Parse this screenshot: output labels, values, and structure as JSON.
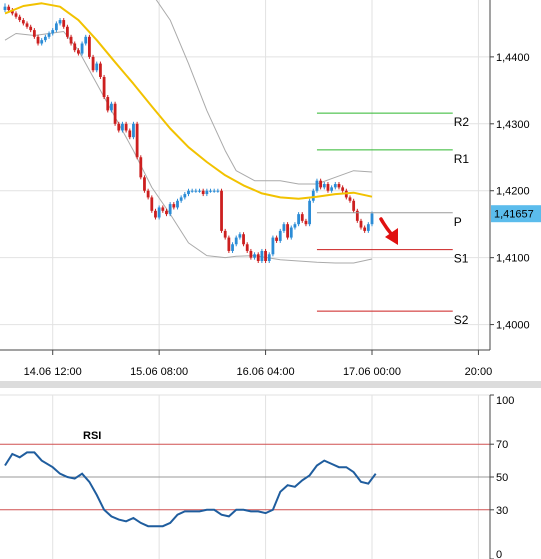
{
  "chart_data": [
    {
      "type": "candlestick",
      "ylim": [
        1.3962,
        1.4485
      ],
      "y_ticks": [
        "1,4000",
        "1,4100",
        "1,4200",
        "1,4300",
        "1,4400"
      ],
      "y_tick_values": [
        1.4,
        1.41,
        1.42,
        1.43,
        1.44
      ],
      "x_ticks": [
        "14.06 12:00",
        "15.06 08:00",
        "16.06 04:00",
        "17.06 00:00",
        "20:00"
      ],
      "x_tick_index": [
        13,
        42,
        71,
        100,
        129
      ],
      "x_range": [
        0,
        135
      ],
      "grid": true,
      "current_price": "1,41657",
      "current_price_value": 1.41657,
      "colors": {
        "up": "#2b8cd6",
        "down": "#cc1f1f",
        "ma": "#f2c200",
        "bands": "#aaaaaa",
        "resistance": "#2db62d",
        "support": "#cc1f1f",
        "pivot": "#9a9a9a",
        "current": "#5bbcec"
      },
      "pivot_levels": [
        {
          "label": "R2",
          "value": 1.4316
        },
        {
          "label": "R1",
          "value": 1.4261
        },
        {
          "label": "P",
          "value": 1.4167
        },
        {
          "label": "S1",
          "value": 1.4112
        },
        {
          "label": "S2",
          "value": 1.402
        }
      ],
      "pivot_x_range": [
        85,
        122
      ],
      "candles": {
        "x": [
          0,
          1,
          2,
          3,
          4,
          5,
          6,
          7,
          8,
          9,
          10,
          11,
          12,
          13,
          14,
          15,
          16,
          17,
          18,
          19,
          20,
          21,
          22,
          23,
          24,
          25,
          26,
          27,
          28,
          29,
          30,
          31,
          32,
          33,
          34,
          35,
          36,
          37,
          38,
          39,
          40,
          41,
          42,
          43,
          44,
          45,
          46,
          47,
          48,
          49,
          50,
          51,
          52,
          53,
          54,
          55,
          56,
          57,
          58,
          59,
          60,
          61,
          62,
          63,
          64,
          65,
          66,
          67,
          68,
          69,
          70,
          71,
          72,
          73,
          74,
          75,
          76,
          77,
          78,
          79,
          80,
          81,
          82,
          83,
          84,
          85,
          86,
          87,
          88,
          89,
          90,
          91,
          92,
          93,
          94,
          95,
          96,
          97,
          98,
          99,
          100
        ],
        "open": [
          1.447,
          1.4475,
          1.447,
          1.4465,
          1.446,
          1.4455,
          1.445,
          1.4445,
          1.444,
          1.443,
          1.442,
          1.4425,
          1.443,
          1.4435,
          1.444,
          1.445,
          1.4455,
          1.4445,
          1.443,
          1.442,
          1.441,
          1.4405,
          1.442,
          1.443,
          1.44,
          1.438,
          1.439,
          1.437,
          1.434,
          1.432,
          1.433,
          1.43,
          1.429,
          1.43,
          1.429,
          1.428,
          1.43,
          1.425,
          1.422,
          1.42,
          1.419,
          1.417,
          1.416,
          1.4175,
          1.417,
          1.4165,
          1.418,
          1.4175,
          1.4185,
          1.419,
          1.4195,
          1.42,
          1.42,
          1.42,
          1.42,
          1.4195,
          1.42,
          1.42,
          1.42,
          1.42,
          1.414,
          1.413,
          1.411,
          1.412,
          1.413,
          1.4135,
          1.412,
          1.411,
          1.41,
          1.4105,
          1.4095,
          1.411,
          1.4095,
          1.4105,
          1.413,
          1.4125,
          1.414,
          1.415,
          1.413,
          1.4145,
          1.415,
          1.4165,
          1.4155,
          1.415,
          1.4185,
          1.42,
          1.4215,
          1.4205,
          1.421,
          1.42,
          1.4205,
          1.421,
          1.4205,
          1.42,
          1.419,
          1.4185,
          1.417,
          1.4155,
          1.4145,
          1.414,
          1.415
        ],
        "close": [
          1.4475,
          1.447,
          1.4465,
          1.446,
          1.4455,
          1.445,
          1.4445,
          1.444,
          1.443,
          1.442,
          1.4425,
          1.443,
          1.4435,
          1.444,
          1.445,
          1.4455,
          1.4445,
          1.443,
          1.442,
          1.441,
          1.4405,
          1.442,
          1.443,
          1.44,
          1.438,
          1.439,
          1.437,
          1.434,
          1.432,
          1.433,
          1.43,
          1.429,
          1.43,
          1.429,
          1.428,
          1.43,
          1.425,
          1.422,
          1.42,
          1.419,
          1.417,
          1.416,
          1.4175,
          1.417,
          1.4165,
          1.418,
          1.4175,
          1.4185,
          1.419,
          1.4195,
          1.42,
          1.42,
          1.42,
          1.42,
          1.4195,
          1.42,
          1.42,
          1.42,
          1.42,
          1.414,
          1.413,
          1.411,
          1.412,
          1.413,
          1.4135,
          1.412,
          1.411,
          1.41,
          1.4105,
          1.4095,
          1.411,
          1.4095,
          1.4105,
          1.413,
          1.4125,
          1.414,
          1.415,
          1.413,
          1.4145,
          1.415,
          1.4165,
          1.4155,
          1.415,
          1.4185,
          1.42,
          1.4215,
          1.4205,
          1.421,
          1.42,
          1.4205,
          1.421,
          1.4205,
          1.42,
          1.419,
          1.4185,
          1.417,
          1.4155,
          1.4145,
          1.414,
          1.415,
          1.4166
        ],
        "high": [
          1.448,
          1.4478,
          1.4473,
          1.4468,
          1.4463,
          1.4458,
          1.4453,
          1.4448,
          1.4443,
          1.4433,
          1.4428,
          1.4433,
          1.4438,
          1.4443,
          1.4453,
          1.4458,
          1.4458,
          1.4448,
          1.4433,
          1.4423,
          1.4413,
          1.4423,
          1.4433,
          1.4433,
          1.4403,
          1.4393,
          1.4393,
          1.4373,
          1.4343,
          1.4333,
          1.4333,
          1.4303,
          1.4303,
          1.4303,
          1.4293,
          1.4303,
          1.4303,
          1.4253,
          1.4223,
          1.4203,
          1.4193,
          1.4173,
          1.4178,
          1.4178,
          1.4173,
          1.4183,
          1.4183,
          1.4188,
          1.4193,
          1.4198,
          1.4203,
          1.4203,
          1.4203,
          1.4203,
          1.4203,
          1.4203,
          1.4203,
          1.4203,
          1.4203,
          1.4203,
          1.4143,
          1.4133,
          1.4123,
          1.4133,
          1.4138,
          1.4138,
          1.4123,
          1.4113,
          1.4108,
          1.4108,
          1.4113,
          1.4113,
          1.4108,
          1.4133,
          1.4133,
          1.4143,
          1.4153,
          1.4153,
          1.4148,
          1.4153,
          1.4168,
          1.4168,
          1.4158,
          1.4188,
          1.4203,
          1.4218,
          1.4218,
          1.4213,
          1.4213,
          1.4208,
          1.4213,
          1.4213,
          1.4208,
          1.4203,
          1.4193,
          1.4188,
          1.4173,
          1.4158,
          1.4148,
          1.4153,
          1.4169
        ],
        "low": [
          1.4467,
          1.4467,
          1.4462,
          1.4457,
          1.4452,
          1.4447,
          1.4442,
          1.4437,
          1.4427,
          1.4417,
          1.4417,
          1.4422,
          1.4427,
          1.4432,
          1.4437,
          1.4447,
          1.4442,
          1.4427,
          1.4417,
          1.4407,
          1.4402,
          1.4402,
          1.4417,
          1.4397,
          1.4377,
          1.4377,
          1.4367,
          1.4337,
          1.4317,
          1.4317,
          1.4297,
          1.4287,
          1.4287,
          1.4287,
          1.4277,
          1.4277,
          1.4247,
          1.4217,
          1.4197,
          1.4187,
          1.4167,
          1.4157,
          1.4157,
          1.4167,
          1.4162,
          1.4162,
          1.4172,
          1.4172,
          1.4182,
          1.4187,
          1.4192,
          1.4197,
          1.4197,
          1.4197,
          1.4192,
          1.4192,
          1.4197,
          1.4197,
          1.4197,
          1.4137,
          1.4127,
          1.4107,
          1.4107,
          1.4117,
          1.4127,
          1.4117,
          1.4107,
          1.4097,
          1.4097,
          1.4092,
          1.4092,
          1.4092,
          1.4092,
          1.4102,
          1.4122,
          1.4122,
          1.4137,
          1.4127,
          1.4127,
          1.4142,
          1.4147,
          1.4152,
          1.4147,
          1.4147,
          1.4182,
          1.4197,
          1.4202,
          1.4202,
          1.4197,
          1.4197,
          1.4202,
          1.4202,
          1.4197,
          1.4187,
          1.4182,
          1.4167,
          1.4152,
          1.4142,
          1.4137,
          1.4137,
          1.4147
        ]
      },
      "moving_average": {
        "x": [
          0,
          5,
          10,
          15,
          20,
          25,
          30,
          35,
          40,
          45,
          50,
          55,
          60,
          65,
          70,
          75,
          80,
          85,
          90,
          95,
          100
        ],
        "values": [
          1.4465,
          1.4476,
          1.448,
          1.4475,
          1.4455,
          1.4425,
          1.4392,
          1.436,
          1.4326,
          1.4293,
          1.4265,
          1.4243,
          1.4223,
          1.4208,
          1.4196,
          1.419,
          1.4188,
          1.4191,
          1.4195,
          1.4197,
          1.4191
        ]
      },
      "bollinger_upper": {
        "x": [
          34,
          40,
          45,
          50,
          55,
          60,
          63,
          68,
          75,
          80,
          85,
          90,
          95,
          100
        ],
        "values": [
          1.451,
          1.4495,
          1.4455,
          1.439,
          1.432,
          1.426,
          1.423,
          1.4215,
          1.4215,
          1.421,
          1.421,
          1.422,
          1.423,
          1.4228
        ]
      },
      "bollinger_lower": {
        "x": [
          0,
          3,
          8,
          12,
          16,
          20,
          25,
          30,
          35,
          40,
          45,
          50,
          55,
          60,
          63,
          68,
          75,
          80,
          85,
          90,
          95,
          100
        ],
        "values": [
          1.4425,
          1.4435,
          1.4432,
          1.4435,
          1.4438,
          1.441,
          1.436,
          1.431,
          1.426,
          1.4205,
          1.4165,
          1.4122,
          1.4103,
          1.41,
          1.4102,
          1.4103,
          1.4097,
          1.4095,
          1.4093,
          1.4092,
          1.4092,
          1.4098
        ]
      }
    },
    {
      "type": "line",
      "title": "RSI",
      "ylim": [
        0,
        100
      ],
      "y_ticks": [
        "0",
        "30",
        "50",
        "70",
        "100"
      ],
      "y_tick_values": [
        0,
        30,
        50,
        70,
        100
      ],
      "level_lines": [
        30,
        50,
        70
      ],
      "x_range": [
        0,
        135
      ],
      "grid": true,
      "colors": {
        "line": "#1f5d9e",
        "levels": "#d05050",
        "mid": "#999999"
      },
      "series": [
        {
          "x": [
            0,
            2,
            4,
            6,
            8,
            10,
            13,
            15,
            17,
            19,
            21,
            23,
            25,
            27,
            29,
            31,
            33,
            35,
            37,
            39,
            41,
            43,
            45,
            47,
            49,
            51,
            53,
            55,
            57,
            59,
            61,
            63,
            65,
            67,
            69,
            71,
            73,
            75,
            77,
            79,
            81,
            83,
            85,
            87,
            89,
            91,
            93,
            95,
            97,
            99,
            101
          ],
          "values": [
            57,
            64,
            62,
            65,
            65,
            60,
            56,
            52,
            50,
            49,
            52,
            47,
            39,
            30,
            26,
            24,
            23,
            25,
            22,
            20,
            20,
            20,
            22,
            27,
            29,
            29,
            29,
            30,
            30,
            27,
            26,
            30,
            30,
            29,
            29,
            28,
            30,
            41,
            45,
            44,
            48,
            51,
            57,
            60,
            58,
            56,
            56,
            53,
            47,
            46,
            52
          ]
        }
      ]
    }
  ]
}
